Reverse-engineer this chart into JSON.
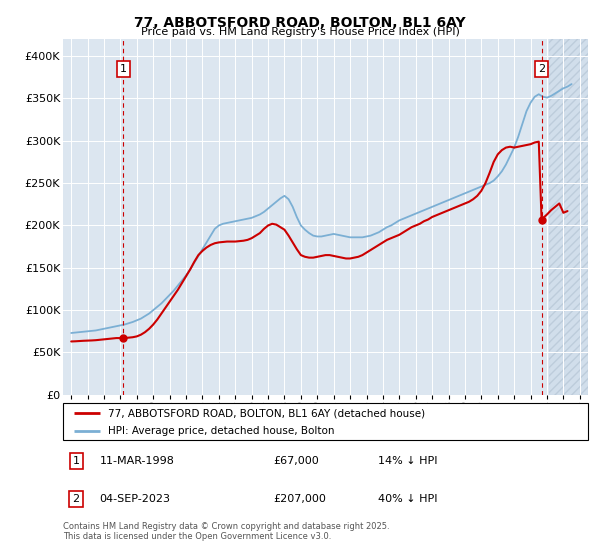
{
  "title": "77, ABBOTSFORD ROAD, BOLTON, BL1 6AY",
  "subtitle": "Price paid vs. HM Land Registry's House Price Index (HPI)",
  "legend_line1": "77, ABBOTSFORD ROAD, BOLTON, BL1 6AY (detached house)",
  "legend_line2": "HPI: Average price, detached house, Bolton",
  "marker1_date": "11-MAR-1998",
  "marker1_price": "£67,000",
  "marker1_hpi": "14% ↓ HPI",
  "marker2_date": "04-SEP-2023",
  "marker2_price": "£207,000",
  "marker2_hpi": "40% ↓ HPI",
  "footer": "Contains HM Land Registry data © Crown copyright and database right 2025.\nThis data is licensed under the Open Government Licence v3.0.",
  "red_color": "#cc0000",
  "blue_color": "#7bafd4",
  "ylim_max": 420000,
  "ylim_min": 0,
  "xlim_min": 1994.5,
  "xlim_max": 2026.5,
  "sale1_x": 1998.18,
  "sale2_x": 2023.67,
  "hatch_start": 2024.1,
  "bg_color": "#dce6f0"
}
